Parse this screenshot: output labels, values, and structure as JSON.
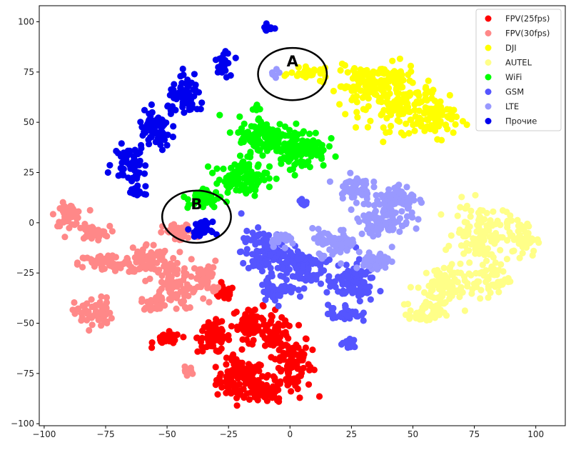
{
  "chart_data": {
    "type": "scatter",
    "title": "",
    "xlabel": "",
    "ylabel": "",
    "xlim": [
      -102,
      112
    ],
    "ylim": [
      -101,
      108
    ],
    "xticks": [
      -100,
      -75,
      -50,
      -25,
      0,
      25,
      50,
      75,
      100
    ],
    "yticks": [
      -100,
      -75,
      -50,
      -25,
      0,
      25,
      50,
      75,
      100
    ],
    "grid": false,
    "legend_position": "top-right",
    "series": [
      {
        "name": "FPV(25fps)",
        "color": "#ff0000",
        "clusters": [
          {
            "cx": -20,
            "cy": -78,
            "rx": 9,
            "ry": 9,
            "n": 110
          },
          {
            "cx": 0,
            "cy": -70,
            "rx": 8,
            "ry": 15,
            "n": 110
          },
          {
            "cx": -15,
            "cy": -50,
            "rx": 8,
            "ry": 7,
            "n": 70
          },
          {
            "cx": -31,
            "cy": -57,
            "rx": 6,
            "ry": 7,
            "n": 70
          },
          {
            "cx": -27,
            "cy": -35,
            "rx": 4,
            "ry": 3,
            "n": 25
          },
          {
            "cx": -10,
            "cy": -85,
            "rx": 6,
            "ry": 4,
            "n": 40
          },
          {
            "cx": -50,
            "cy": -58,
            "rx": 5,
            "ry": 3,
            "n": 30
          },
          {
            "cx": -5,
            "cy": -55,
            "rx": 5,
            "ry": 6,
            "n": 40
          }
        ]
      },
      {
        "name": "FPV(30fps)",
        "color": "#ff8888",
        "clusters": [
          {
            "cx": -90,
            "cy": 4,
            "rx": 5,
            "ry": 5,
            "n": 50
          },
          {
            "cx": -80,
            "cy": -5,
            "rx": 6,
            "ry": 3,
            "n": 35
          },
          {
            "cx": -75,
            "cy": -20,
            "rx": 10,
            "ry": 4,
            "n": 60
          },
          {
            "cx": -58,
            "cy": -18,
            "rx": 8,
            "ry": 7,
            "n": 70
          },
          {
            "cx": -48,
            "cy": -30,
            "rx": 9,
            "ry": 12,
            "n": 90
          },
          {
            "cx": -80,
            "cy": -45,
            "rx": 7,
            "ry": 7,
            "n": 60
          },
          {
            "cx": -45,
            "cy": -5,
            "rx": 6,
            "ry": 4,
            "n": 40
          },
          {
            "cx": -34,
            "cy": -28,
            "rx": 4,
            "ry": 8,
            "n": 40
          },
          {
            "cx": -55,
            "cy": -40,
            "rx": 5,
            "ry": 3,
            "n": 25
          },
          {
            "cx": -42,
            "cy": -74,
            "rx": 2,
            "ry": 2,
            "n": 8
          }
        ]
      },
      {
        "name": "DJI",
        "color": "#ffff00",
        "clusters": [
          {
            "cx": 30,
            "cy": 68,
            "rx": 10,
            "ry": 9,
            "n": 90
          },
          {
            "cx": 47,
            "cy": 58,
            "rx": 13,
            "ry": 11,
            "n": 130
          },
          {
            "cx": 60,
            "cy": 52,
            "rx": 8,
            "ry": 8,
            "n": 60
          },
          {
            "cx": 8,
            "cy": 74,
            "rx": 7,
            "ry": 2.5,
            "n": 30
          },
          {
            "cx": 40,
            "cy": 72,
            "rx": 10,
            "ry": 6,
            "n": 60
          }
        ]
      },
      {
        "name": "AUTEL",
        "color": "#ffff88",
        "clusters": [
          {
            "cx": 78,
            "cy": -5,
            "rx": 10,
            "ry": 13,
            "n": 110
          },
          {
            "cx": 62,
            "cy": -32,
            "rx": 10,
            "ry": 10,
            "n": 90
          },
          {
            "cx": 55,
            "cy": -45,
            "rx": 6,
            "ry": 5,
            "n": 40
          },
          {
            "cx": 95,
            "cy": -8,
            "rx": 5,
            "ry": 8,
            "n": 50
          },
          {
            "cx": 82,
            "cy": -28,
            "rx": 7,
            "ry": 7,
            "n": 50
          }
        ]
      },
      {
        "name": "WiFi",
        "color": "#00ff00",
        "clusters": [
          {
            "cx": -10,
            "cy": 42,
            "rx": 10,
            "ry": 10,
            "n": 130
          },
          {
            "cx": 5,
            "cy": 37,
            "rx": 9,
            "ry": 9,
            "n": 110
          },
          {
            "cx": -20,
            "cy": 22,
            "rx": 10,
            "ry": 7,
            "n": 90
          },
          {
            "cx": -35,
            "cy": 12,
            "rx": 6,
            "ry": 5,
            "n": 40
          },
          {
            "cx": -14,
            "cy": 57,
            "rx": 2,
            "ry": 1.5,
            "n": 6
          }
        ]
      },
      {
        "name": "GSM",
        "color": "#5555ff",
        "clusters": [
          {
            "cx": -10,
            "cy": -15,
            "rx": 9,
            "ry": 10,
            "n": 110
          },
          {
            "cx": 5,
            "cy": -22,
            "rx": 8,
            "ry": 9,
            "n": 90
          },
          {
            "cx": 25,
            "cy": -30,
            "rx": 9,
            "ry": 9,
            "n": 90
          },
          {
            "cx": 22,
            "cy": -45,
            "rx": 6,
            "ry": 4,
            "n": 40
          },
          {
            "cx": 5,
            "cy": 10,
            "rx": 2,
            "ry": 1.5,
            "n": 10
          },
          {
            "cx": 24,
            "cy": -60,
            "rx": 2.5,
            "ry": 2,
            "n": 15
          },
          {
            "cx": -5,
            "cy": -33,
            "rx": 6,
            "ry": 5,
            "n": 40
          }
        ]
      },
      {
        "name": "LTE",
        "color": "#9999ff",
        "clusters": [
          {
            "cx": 38,
            "cy": 3,
            "rx": 10,
            "ry": 9,
            "n": 100
          },
          {
            "cx": 26,
            "cy": 18,
            "rx": 6,
            "ry": 5,
            "n": 50
          },
          {
            "cx": 45,
            "cy": 12,
            "rx": 6,
            "ry": 6,
            "n": 60
          },
          {
            "cx": 18,
            "cy": -10,
            "rx": 8,
            "ry": 6,
            "n": 60
          },
          {
            "cx": 35,
            "cy": -20,
            "rx": 5,
            "ry": 5,
            "n": 40
          },
          {
            "cx": -3,
            "cy": -8,
            "rx": 5,
            "ry": 3,
            "n": 25
          },
          {
            "cx": -5,
            "cy": 75,
            "rx": 2,
            "ry": 2,
            "n": 6
          }
        ]
      },
      {
        "name": "Прочие",
        "color": "#0000ee",
        "clusters": [
          {
            "cx": -42,
            "cy": 62,
            "rx": 7,
            "ry": 8,
            "n": 70
          },
          {
            "cx": -55,
            "cy": 46,
            "rx": 6,
            "ry": 9,
            "n": 70
          },
          {
            "cx": -65,
            "cy": 30,
            "rx": 6,
            "ry": 8,
            "n": 60
          },
          {
            "cx": -27,
            "cy": 80,
            "rx": 3,
            "ry": 6,
            "n": 30
          },
          {
            "cx": -9,
            "cy": 97,
            "rx": 2,
            "ry": 1.5,
            "n": 10
          },
          {
            "cx": -36,
            "cy": -3,
            "rx": 3.5,
            "ry": 3,
            "n": 40
          },
          {
            "cx": -62,
            "cy": 15,
            "rx": 3,
            "ry": 3,
            "n": 15
          }
        ]
      }
    ],
    "annotations": [
      {
        "label": "A",
        "x": 1,
        "y": 74,
        "rx": 14,
        "ry": 13
      },
      {
        "label": "B",
        "x": -38,
        "y": 3,
        "rx": 14,
        "ry": 13
      }
    ]
  }
}
